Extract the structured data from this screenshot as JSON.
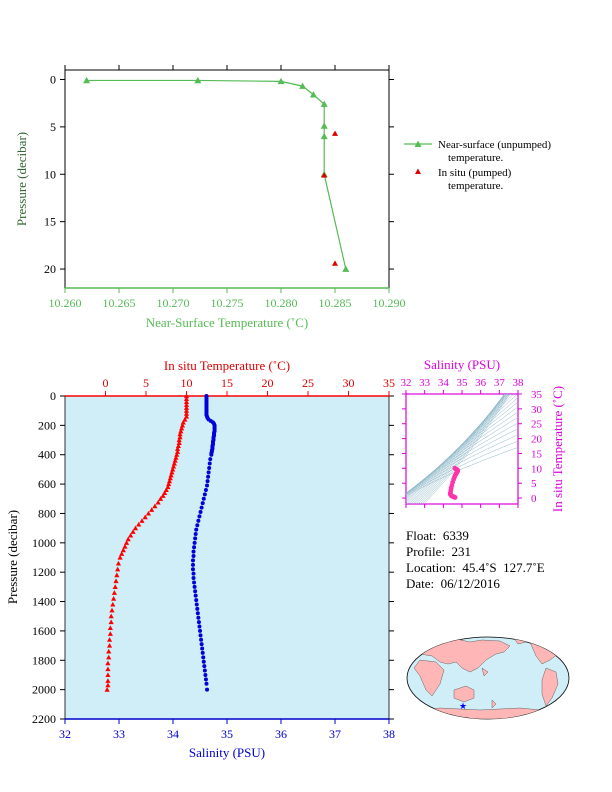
{
  "chart_data": [
    {
      "type": "line",
      "xlabel": "Near-Surface Temperature (˚C)",
      "ylabel": "Pressure (decibar)",
      "xlim": [
        10.26,
        10.29
      ],
      "ylim": [
        22,
        -1
      ],
      "x_ticks": [
        "10.260",
        "10.265",
        "10.270",
        "10.275",
        "10.280",
        "10.285",
        "10.290"
      ],
      "y_ticks": [
        "0",
        "5",
        "10",
        "15",
        "20"
      ],
      "legend_placement": "right",
      "colors": {
        "unpumped": "#55bb55",
        "pumped": "#dd0000",
        "axis": "#55bb55"
      },
      "series": [
        {
          "name": "Near-surface (unpumped) temperature.",
          "legend_line1": "Near-surface (unpumped)",
          "legend_line2": "temperature.",
          "marker": "triangle",
          "points": [
            [
              10.262,
              0.1
            ],
            [
              10.2723,
              0.1
            ],
            [
              10.28,
              0.2
            ],
            [
              10.282,
              0.7
            ],
            [
              10.283,
              1.6
            ],
            [
              10.284,
              2.6
            ],
            [
              10.284,
              4.9
            ],
            [
              10.284,
              6.0
            ],
            [
              10.284,
              10.0
            ],
            [
              10.286,
              20.0
            ]
          ]
        },
        {
          "name": "In situ (pumped) temperature.",
          "legend_line1": "In situ (pumped)",
          "legend_line2": "temperature.",
          "marker": "triangle",
          "points": [
            [
              10.285,
              5.7
            ],
            [
              10.284,
              10.1
            ],
            [
              10.285,
              19.4
            ]
          ]
        }
      ]
    },
    {
      "type": "scatter",
      "ylabel": "Pressure (decibar)",
      "ylim": [
        2200,
        0
      ],
      "y_ticks": [
        "0",
        "200",
        "400",
        "600",
        "800",
        "1000",
        "1200",
        "1400",
        "1600",
        "1800",
        "2000",
        "2200"
      ],
      "top_axis": {
        "label": "In situ Temperature (˚C)",
        "lim": [
          -5,
          35
        ],
        "ticks": [
          "0",
          "5",
          "10",
          "15",
          "20",
          "25",
          "30",
          "35"
        ]
      },
      "bottom_axis": {
        "label": "Salinity (PSU)",
        "lim": [
          32,
          38
        ],
        "ticks": [
          "32",
          "33",
          "34",
          "35",
          "36",
          "37",
          "38"
        ]
      },
      "colors": {
        "temperature": "#ff0000",
        "salinity": "#0000dd",
        "background": "#cfeef7",
        "left_axis": "#000000"
      },
      "series": [
        {
          "name": "Temperature",
          "axis": "top",
          "marker": "triangle",
          "points": [
            [
              10.0,
              0
            ],
            [
              10.0,
              20
            ],
            [
              10.0,
              40
            ],
            [
              10.0,
              60
            ],
            [
              10.0,
              80
            ],
            [
              10.0,
              100
            ],
            [
              10.0,
              120
            ],
            [
              10.0,
              140
            ],
            [
              9.8,
              160
            ],
            [
              9.6,
              180
            ],
            [
              9.5,
              200
            ],
            [
              9.4,
              220
            ],
            [
              9.3,
              240
            ],
            [
              9.2,
              260
            ],
            [
              9.2,
              280
            ],
            [
              9.1,
              300
            ],
            [
              9.1,
              320
            ],
            [
              9.0,
              340
            ],
            [
              8.9,
              360
            ],
            [
              8.9,
              380
            ],
            [
              8.8,
              400
            ],
            [
              8.7,
              420
            ],
            [
              8.6,
              440
            ],
            [
              8.5,
              460
            ],
            [
              8.4,
              480
            ],
            [
              8.3,
              500
            ],
            [
              8.2,
              520
            ],
            [
              8.1,
              540
            ],
            [
              8.0,
              560
            ],
            [
              7.9,
              580
            ],
            [
              7.8,
              600
            ],
            [
              7.7,
              620
            ],
            [
              7.5,
              640
            ],
            [
              7.3,
              660
            ],
            [
              7.1,
              680
            ],
            [
              6.8,
              700
            ],
            [
              6.5,
              725
            ],
            [
              6.1,
              750
            ],
            [
              5.7,
              775
            ],
            [
              5.3,
              800
            ],
            [
              4.9,
              825
            ],
            [
              4.5,
              850
            ],
            [
              4.1,
              875
            ],
            [
              3.7,
              900
            ],
            [
              3.4,
              925
            ],
            [
              3.1,
              950
            ],
            [
              2.8,
              975
            ],
            [
              2.6,
              1000
            ],
            [
              2.4,
              1025
            ],
            [
              2.2,
              1050
            ],
            [
              2.0,
              1075
            ],
            [
              1.8,
              1100
            ],
            [
              1.6,
              1140
            ],
            [
              1.5,
              1180
            ],
            [
              1.4,
              1220
            ],
            [
              1.3,
              1260
            ],
            [
              1.2,
              1300
            ],
            [
              1.1,
              1340
            ],
            [
              1.0,
              1380
            ],
            [
              0.9,
              1420
            ],
            [
              0.8,
              1460
            ],
            [
              0.7,
              1500
            ],
            [
              0.7,
              1540
            ],
            [
              0.6,
              1580
            ],
            [
              0.6,
              1620
            ],
            [
              0.5,
              1660
            ],
            [
              0.5,
              1700
            ],
            [
              0.4,
              1740
            ],
            [
              0.4,
              1780
            ],
            [
              0.3,
              1820
            ],
            [
              0.3,
              1860
            ],
            [
              0.3,
              1900
            ],
            [
              0.3,
              1940
            ],
            [
              0.3,
              1970
            ],
            [
              0.2,
              2000
            ]
          ]
        },
        {
          "name": "Salinity",
          "axis": "bottom",
          "marker": "circle",
          "points": [
            [
              34.62,
              0
            ],
            [
              34.62,
              10
            ],
            [
              34.62,
              20
            ],
            [
              34.62,
              30
            ],
            [
              34.62,
              40
            ],
            [
              34.62,
              50
            ],
            [
              34.62,
              60
            ],
            [
              34.62,
              70
            ],
            [
              34.62,
              80
            ],
            [
              34.62,
              90
            ],
            [
              34.62,
              100
            ],
            [
              34.62,
              110
            ],
            [
              34.62,
              120
            ],
            [
              34.62,
              130
            ],
            [
              34.63,
              140
            ],
            [
              34.64,
              150
            ],
            [
              34.66,
              160
            ],
            [
              34.7,
              170
            ],
            [
              34.74,
              180
            ],
            [
              34.76,
              190
            ],
            [
              34.77,
              200
            ],
            [
              34.77,
              210
            ],
            [
              34.77,
              220
            ],
            [
              34.77,
              230
            ],
            [
              34.77,
              240
            ],
            [
              34.76,
              250
            ],
            [
              34.76,
              260
            ],
            [
              34.76,
              270
            ],
            [
              34.75,
              280
            ],
            [
              34.75,
              290
            ],
            [
              34.75,
              300
            ],
            [
              34.74,
              310
            ],
            [
              34.74,
              320
            ],
            [
              34.74,
              330
            ],
            [
              34.73,
              340
            ],
            [
              34.73,
              350
            ],
            [
              34.73,
              360
            ],
            [
              34.72,
              370
            ],
            [
              34.72,
              380
            ],
            [
              34.71,
              390
            ],
            [
              34.71,
              400
            ],
            [
              34.69,
              430
            ],
            [
              34.68,
              460
            ],
            [
              34.67,
              490
            ],
            [
              34.66,
              520
            ],
            [
              34.65,
              550
            ],
            [
              34.64,
              580
            ],
            [
              34.63,
              610
            ],
            [
              34.61,
              640
            ],
            [
              34.59,
              670
            ],
            [
              34.57,
              700
            ],
            [
              34.55,
              730
            ],
            [
              34.53,
              760
            ],
            [
              34.51,
              790
            ],
            [
              34.49,
              820
            ],
            [
              34.47,
              850
            ],
            [
              34.45,
              880
            ],
            [
              34.43,
              910
            ],
            [
              34.42,
              940
            ],
            [
              34.41,
              970
            ],
            [
              34.4,
              1000
            ],
            [
              34.39,
              1030
            ],
            [
              34.38,
              1060
            ],
            [
              34.38,
              1090
            ],
            [
              34.37,
              1120
            ],
            [
              34.37,
              1150
            ],
            [
              34.37,
              1180
            ],
            [
              34.38,
              1210
            ],
            [
              34.38,
              1240
            ],
            [
              34.39,
              1270
            ],
            [
              34.4,
              1300
            ],
            [
              34.41,
              1330
            ],
            [
              34.42,
              1360
            ],
            [
              34.43,
              1390
            ],
            [
              34.44,
              1420
            ],
            [
              34.45,
              1450
            ],
            [
              34.46,
              1480
            ],
            [
              34.47,
              1510
            ],
            [
              34.48,
              1540
            ],
            [
              34.49,
              1570
            ],
            [
              34.5,
              1600
            ],
            [
              34.51,
              1630
            ],
            [
              34.52,
              1660
            ],
            [
              34.53,
              1690
            ],
            [
              34.54,
              1720
            ],
            [
              34.55,
              1750
            ],
            [
              34.56,
              1780
            ],
            [
              34.57,
              1810
            ],
            [
              34.58,
              1840
            ],
            [
              34.59,
              1870
            ],
            [
              34.6,
              1900
            ],
            [
              34.61,
              1930
            ],
            [
              34.62,
              1960
            ],
            [
              34.63,
              2000
            ]
          ]
        }
      ]
    },
    {
      "type": "scatter",
      "xlabel": "Salinity (PSU)",
      "ylabel": "In situ Temperature (˚C)",
      "xlim": [
        32,
        38
      ],
      "ylim": [
        -2,
        35
      ],
      "x_ticks": [
        "32",
        "33",
        "34",
        "35",
        "36",
        "37",
        "38"
      ],
      "y_ticks": [
        "0",
        "5",
        "10",
        "15",
        "20",
        "25",
        "30",
        "35"
      ],
      "colors": {
        "axis": "#dd00dd",
        "points": "#ff33aa",
        "isopycnals": "#8fb8c8"
      },
      "series": [
        {
          "name": "T-S",
          "marker": "circle",
          "points": [
            [
              34.62,
              10.0
            ],
            [
              34.66,
              9.8
            ],
            [
              34.72,
              9.6
            ],
            [
              34.76,
              9.4
            ],
            [
              34.77,
              9.2
            ],
            [
              34.76,
              9.0
            ],
            [
              34.74,
              8.8
            ],
            [
              34.72,
              8.6
            ],
            [
              34.7,
              8.3
            ],
            [
              34.67,
              8.0
            ],
            [
              34.64,
              7.7
            ],
            [
              34.6,
              7.1
            ],
            [
              34.55,
              6.3
            ],
            [
              34.5,
              5.3
            ],
            [
              34.46,
              4.3
            ],
            [
              34.42,
              3.4
            ],
            [
              34.4,
              2.6
            ],
            [
              34.38,
              1.8
            ],
            [
              34.37,
              1.4
            ],
            [
              34.39,
              1.1
            ],
            [
              34.43,
              0.8
            ],
            [
              34.48,
              0.6
            ],
            [
              34.53,
              0.5
            ],
            [
              34.58,
              0.3
            ],
            [
              34.63,
              0.2
            ]
          ]
        }
      ]
    }
  ],
  "info": {
    "float": "Float:  6339",
    "profile": "Profile:  231",
    "location": "Location:  45.4˚S  127.7˚E",
    "date": "Date:  06/12/2016"
  },
  "map": {
    "marker_lat": -45.4,
    "marker_lon": 127.7,
    "ocean_color": "#cfeef7",
    "land_color": "#ffb6b6",
    "marker_color": "#0000ff"
  }
}
